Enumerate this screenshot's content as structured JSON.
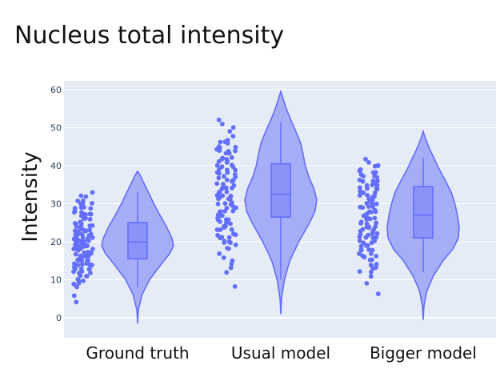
{
  "chart_data": {
    "type": "violin",
    "title": "Nucleus total intensity",
    "xlabel": "",
    "ylabel": "Intensity",
    "ylim": [
      -3,
      62
    ],
    "yticks": [
      "0",
      "10",
      "20",
      "30",
      "40",
      "50",
      "60"
    ],
    "grid": true,
    "legend": "none",
    "colors": {
      "fill": "#9aa2f7",
      "line": "#636efa",
      "points": "#636efa",
      "plot_bg": "#e5ecf6"
    },
    "categories": [
      "Ground truth",
      "Usual model",
      "Bigger model"
    ],
    "series": [
      {
        "box": {
          "min": 8,
          "q1": 15.5,
          "median": 20,
          "q3": 25,
          "max": 33
        },
        "violin_range": [
          -1.5,
          38.5
        ],
        "density": [
          [
            -1.5,
            0
          ],
          [
            2,
            0.02
          ],
          [
            6,
            0.12
          ],
          [
            10,
            0.33
          ],
          [
            14,
            0.65
          ],
          [
            17,
            0.9
          ],
          [
            19,
            1
          ],
          [
            21,
            0.95
          ],
          [
            24,
            0.8
          ],
          [
            27,
            0.62
          ],
          [
            30,
            0.45
          ],
          [
            33,
            0.3
          ],
          [
            35.5,
            0.17
          ],
          [
            37.5,
            0.07
          ],
          [
            38.5,
            0
          ]
        ],
        "points": [
          29,
          28,
          27,
          30,
          26,
          25,
          24,
          23,
          22,
          22,
          21,
          21,
          20,
          20,
          19,
          19,
          18,
          18,
          17,
          17,
          16,
          16,
          15,
          15,
          14,
          14,
          13,
          12,
          11,
          10,
          9,
          8,
          32,
          31,
          30,
          29,
          28,
          27,
          26,
          25,
          24,
          24,
          23,
          23,
          22,
          22,
          21,
          20,
          20,
          19,
          19,
          18,
          18,
          17,
          17,
          16,
          16,
          15,
          14,
          13,
          12,
          11,
          10,
          9,
          5.5,
          4,
          33,
          32,
          31,
          30,
          29,
          27,
          26,
          25,
          23,
          22,
          21,
          20,
          19,
          18,
          17,
          16,
          15,
          14,
          13,
          12,
          28,
          27,
          26,
          24,
          23,
          22,
          21,
          20,
          19,
          18,
          17,
          16,
          15,
          14,
          13,
          12,
          11,
          10,
          9,
          29,
          27,
          25,
          24,
          23,
          22,
          21,
          20,
          19,
          18,
          17,
          16,
          15,
          14,
          13
        ]
      },
      {
        "box": {
          "min": 10,
          "q1": 26.5,
          "median": 32.5,
          "q3": 40.5,
          "max": 51.5
        },
        "violin_range": [
          1,
          59.5
        ],
        "density": [
          [
            1,
            0
          ],
          [
            5,
            0.02
          ],
          [
            10,
            0.1
          ],
          [
            15,
            0.25
          ],
          [
            20,
            0.5
          ],
          [
            25,
            0.8
          ],
          [
            28,
            0.95
          ],
          [
            31,
            1
          ],
          [
            34,
            0.92
          ],
          [
            37,
            0.78
          ],
          [
            40,
            0.68
          ],
          [
            43,
            0.62
          ],
          [
            46,
            0.55
          ],
          [
            49,
            0.42
          ],
          [
            52,
            0.28
          ],
          [
            55,
            0.15
          ],
          [
            58,
            0.05
          ],
          [
            59.5,
            0
          ]
        ],
        "points": [
          52,
          51,
          50,
          49,
          48,
          47,
          46,
          46,
          45,
          45,
          44,
          44,
          43,
          43,
          42,
          42,
          41,
          41,
          40,
          40,
          39,
          39,
          38,
          38,
          37,
          37,
          36,
          36,
          35,
          35,
          34,
          34,
          33,
          33,
          32,
          32,
          31,
          31,
          30,
          30,
          29,
          29,
          28,
          28,
          27,
          27,
          26,
          26,
          25,
          25,
          24,
          24,
          23,
          23,
          22,
          22,
          21,
          21,
          20,
          20,
          19,
          18,
          17,
          16,
          15,
          14,
          13,
          12,
          8.5,
          46,
          45,
          44,
          42,
          41,
          40,
          39,
          38,
          37,
          36,
          35,
          34,
          33,
          32,
          31,
          30,
          29,
          28,
          27,
          26,
          25,
          24,
          23,
          22,
          21,
          20,
          44,
          42,
          40,
          38,
          36,
          34,
          32,
          30,
          28,
          26,
          24,
          22,
          20,
          18
        ]
      },
      {
        "box": {
          "min": 12,
          "q1": 21,
          "median": 27,
          "q3": 34.5,
          "max": 42
        },
        "violin_range": [
          -0.5,
          49
        ],
        "density": [
          [
            -0.5,
            0
          ],
          [
            3,
            0.02
          ],
          [
            7,
            0.1
          ],
          [
            11,
            0.28
          ],
          [
            15,
            0.55
          ],
          [
            18,
            0.82
          ],
          [
            21,
            0.98
          ],
          [
            24,
            1
          ],
          [
            27,
            0.95
          ],
          [
            30,
            0.88
          ],
          [
            33,
            0.78
          ],
          [
            36,
            0.62
          ],
          [
            39,
            0.45
          ],
          [
            42,
            0.3
          ],
          [
            45,
            0.15
          ],
          [
            47.5,
            0.05
          ],
          [
            49,
            0
          ]
        ],
        "points": [
          42,
          41,
          40,
          40,
          39,
          39,
          38,
          38,
          37,
          37,
          36,
          36,
          35,
          35,
          34,
          34,
          33,
          33,
          32,
          32,
          31,
          31,
          30,
          30,
          29,
          29,
          28,
          28,
          27,
          27,
          26,
          26,
          25,
          25,
          24,
          24,
          23,
          23,
          22,
          22,
          21,
          21,
          20,
          20,
          19,
          19,
          18,
          18,
          17,
          16,
          15,
          14,
          13,
          12,
          11,
          9,
          6,
          38,
          37,
          36,
          35,
          34,
          33,
          32,
          31,
          30,
          29,
          28,
          27,
          26,
          25,
          24,
          23,
          22,
          21,
          20,
          19,
          18,
          17,
          16,
          15,
          14,
          13,
          36,
          34,
          32,
          30,
          28,
          26,
          24,
          22,
          20,
          18,
          16,
          14,
          12,
          40,
          38,
          35,
          33,
          31,
          29,
          27,
          25,
          23,
          21
        ]
      }
    ]
  }
}
